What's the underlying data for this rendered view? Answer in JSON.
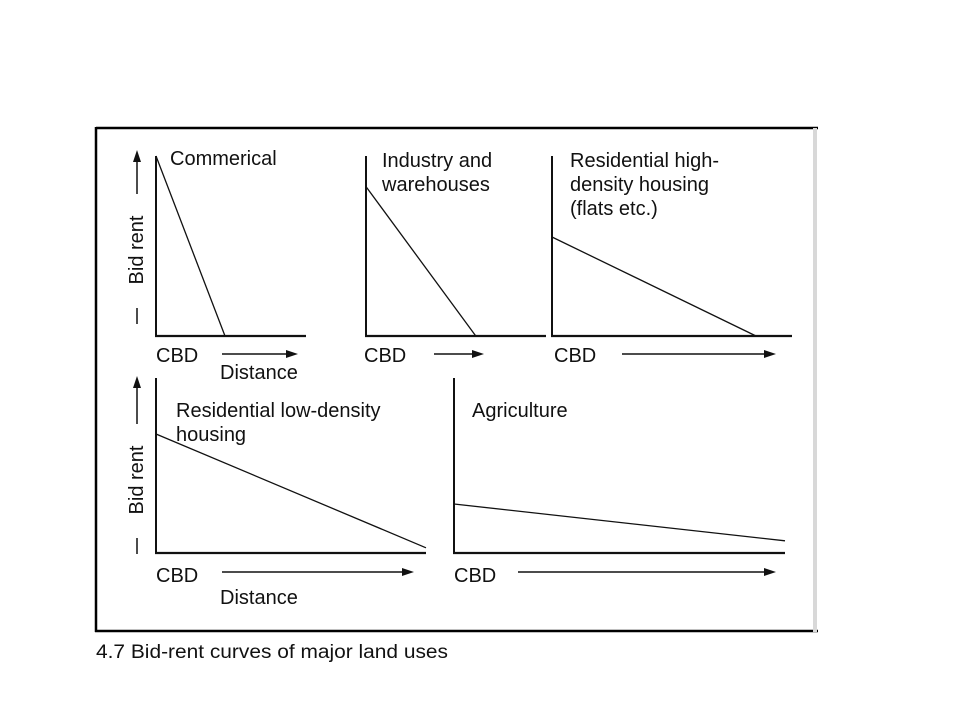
{
  "colors": {
    "ink": "#111111",
    "frame": "#000000",
    "edge_shadow": "#d8d8d8"
  },
  "chart_data": [
    {
      "type": "line",
      "title_lines": [
        "Commerical"
      ],
      "xlabel": "Distance",
      "x_origin_label": "CBD",
      "ylabel": "Bid rent",
      "xlim": [
        0,
        10
      ],
      "ylim": [
        0,
        10
      ],
      "series": [
        {
          "x": [
            0,
            4.6
          ],
          "y": [
            10,
            0
          ]
        }
      ]
    },
    {
      "type": "line",
      "title_lines": [
        "Industry and",
        "warehouses"
      ],
      "xlabel": "",
      "x_origin_label": "CBD",
      "ylabel": "",
      "xlim": [
        0,
        10
      ],
      "ylim": [
        0,
        10
      ],
      "series": [
        {
          "x": [
            0,
            6.1
          ],
          "y": [
            8.3,
            0
          ]
        }
      ]
    },
    {
      "type": "line",
      "title_lines": [
        "Residential high-",
        "density housing",
        "(flats etc.)"
      ],
      "xlabel": "",
      "x_origin_label": "CBD",
      "ylabel": "",
      "xlim": [
        0,
        10
      ],
      "ylim": [
        0,
        10
      ],
      "series": [
        {
          "x": [
            0,
            8.5
          ],
          "y": [
            5.5,
            0
          ]
        }
      ]
    },
    {
      "type": "line",
      "title_lines": [
        "Residential low-density",
        "housing"
      ],
      "xlabel": "Distance",
      "x_origin_label": "CBD",
      "ylabel": "Bid rent",
      "xlim": [
        0,
        10
      ],
      "ylim": [
        0,
        10
      ],
      "series": [
        {
          "x": [
            0,
            10
          ],
          "y": [
            6.8,
            0.3
          ]
        }
      ]
    },
    {
      "type": "line",
      "title_lines": [
        "Agriculture"
      ],
      "xlabel": "",
      "x_origin_label": "CBD",
      "ylabel": "",
      "xlim": [
        0,
        10
      ],
      "ylim": [
        0,
        10
      ],
      "series": [
        {
          "x": [
            0,
            10
          ],
          "y": [
            2.8,
            0.7
          ]
        }
      ]
    }
  ],
  "caption": "4.7 Bid-rent curves of major land uses"
}
